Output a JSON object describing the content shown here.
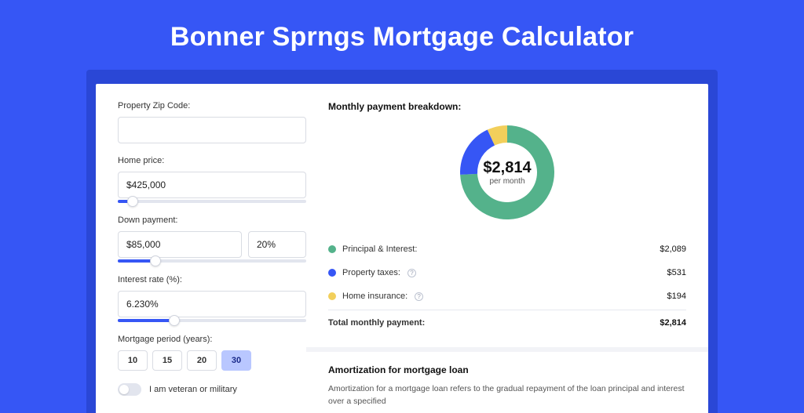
{
  "page": {
    "title": "Bonner Sprngs Mortgage Calculator",
    "background_color": "#3656f5",
    "band_color": "#2a47d6",
    "card_color": "#ffffff"
  },
  "form": {
    "zip": {
      "label": "Property Zip Code:",
      "value": ""
    },
    "home_price": {
      "label": "Home price:",
      "value": "$425,000",
      "slider_pct": 8
    },
    "down_payment": {
      "label": "Down payment:",
      "amount": "$85,000",
      "pct": "20%",
      "slider_pct": 20
    },
    "interest_rate": {
      "label": "Interest rate (%):",
      "value": "6.230%",
      "slider_pct": 30
    },
    "period": {
      "label": "Mortgage period (years):",
      "options": [
        "10",
        "15",
        "20",
        "30"
      ],
      "active": "30"
    },
    "veteran": {
      "label": "I am veteran or military",
      "checked": false
    }
  },
  "breakdown": {
    "title": "Monthly payment breakdown:",
    "center_amount": "$2,814",
    "center_sub": "per month",
    "donut": {
      "slices": [
        {
          "label_key": "principal_interest",
          "value": 2089,
          "color": "#54b28b"
        },
        {
          "label_key": "property_taxes",
          "value": 531,
          "color": "#3656f5"
        },
        {
          "label_key": "home_insurance",
          "value": 194,
          "color": "#f2cf5b"
        }
      ],
      "inner_radius": 38,
      "outer_radius": 60,
      "size": 130
    },
    "legend": {
      "principal_interest": {
        "label": "Principal & Interest:",
        "value": "$2,089",
        "color": "#54b28b",
        "help": false
      },
      "property_taxes": {
        "label": "Property taxes:",
        "value": "$531",
        "color": "#3656f5",
        "help": true
      },
      "home_insurance": {
        "label": "Home insurance:",
        "value": "$194",
        "color": "#f2cf5b",
        "help": true
      },
      "total": {
        "label": "Total monthly payment:",
        "value": "$2,814"
      }
    }
  },
  "amortization": {
    "title": "Amortization for mortgage loan",
    "text": "Amortization for a mortgage loan refers to the gradual repayment of the loan principal and interest over a specified"
  }
}
